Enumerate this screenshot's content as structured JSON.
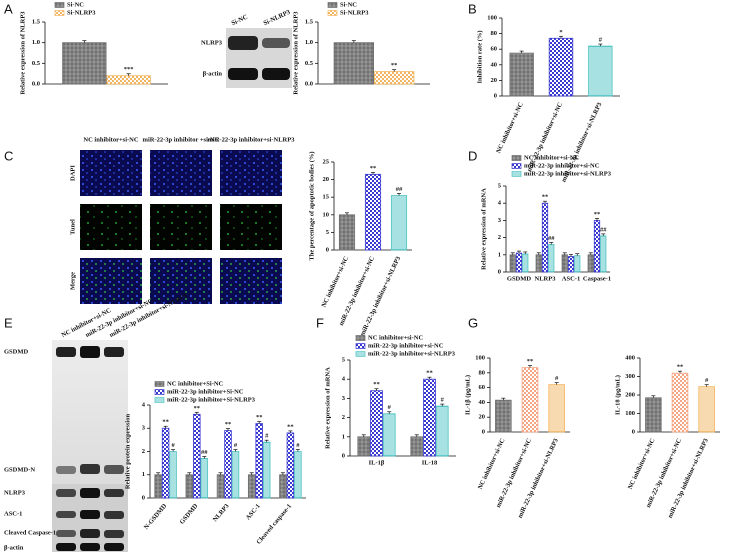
{
  "panel_labels": [
    "A",
    "B",
    "C",
    "D",
    "E",
    "F",
    "G"
  ],
  "blot_A": {
    "columns": [
      "Si-NC",
      "Si-NLRP3"
    ],
    "rows": [
      "NLRP3",
      "β-actin"
    ]
  },
  "images_C": {
    "columns": [
      "NC inhibitor+si-NC",
      "miR-22-3p inhibitor +si-NC",
      "miR-22-3p inhibitor+si-NLRP3"
    ],
    "rows": [
      "DAPI",
      "Tunel",
      "Merge"
    ]
  },
  "blot_E": {
    "columns": [
      "NC inhibitor+si-NC",
      "miR-22-3p inhibitor+si-NC",
      "miR-22-3p inhibitor+si-NLRP3"
    ],
    "rows": [
      "GSDMD",
      "GSDMD-N",
      "NLRP3",
      "ASC-1",
      "Cleaved Caspase-1",
      "β-actin"
    ]
  },
  "chart_data": [
    {
      "type": "bar",
      "ylabel": "Relative expression of NLRP3",
      "categories": [
        null
      ],
      "series": [
        {
          "name": "Si-NC",
          "color": "#707070",
          "values": [
            1.0
          ],
          "annotations": [
            null
          ]
        },
        {
          "name": "Si-NLRP3",
          "color": "#f2b560",
          "values": [
            0.2
          ],
          "annotations": [
            "***"
          ]
        }
      ],
      "ylim": [
        0,
        1.5
      ],
      "yticks": [
        {
          "value": 0,
          "label": "0.0"
        },
        {
          "value": 0.5,
          "label": "0.5"
        },
        {
          "value": 1,
          "label": "1.0"
        },
        {
          "value": 1.5,
          "label": "1.5"
        }
      ]
    },
    {
      "type": "bar",
      "ylabel": "Relative expression of NLRP3",
      "categories": [
        null
      ],
      "series": [
        {
          "name": "Si-NC",
          "color": "#707070",
          "values": [
            1.0
          ],
          "annotations": [
            null
          ]
        },
        {
          "name": "Si-NLRP3",
          "color": "#f2b560",
          "values": [
            0.3
          ],
          "annotations": [
            "**"
          ]
        }
      ],
      "ylim": [
        0,
        1.5
      ],
      "yticks": [
        {
          "value": 0,
          "label": "0.0"
        },
        {
          "value": 0.5,
          "label": "0.5"
        },
        {
          "value": 1,
          "label": "1.0"
        },
        {
          "value": 1.5,
          "label": "1.5"
        }
      ]
    },
    {
      "type": "bar",
      "ylabel": "Inhibition rate (%)",
      "categories": [
        "NC inhibitor+si-NC",
        "miR-22-3p inhibitor+si-NC",
        "miR-22-3p inhibitor+si-NLRP3"
      ],
      "values": [
        55,
        74,
        64
      ],
      "colors": [
        "#707070",
        "#3a3ad0",
        "#4fc3c3"
      ],
      "annotations": [
        null,
        "*",
        "#"
      ],
      "ylim": [
        0,
        100
      ],
      "yticks": [
        0,
        20,
        40,
        60,
        80,
        100
      ]
    },
    {
      "type": "bar",
      "ylabel": "The percentage of apoptotic bodies (%)",
      "categories": [
        "NC inhibitor+si-NC",
        "miR-22-3p inhibitor+si-NC",
        "miR-22-3p inhibitor+si-NLRP3"
      ],
      "values": [
        10,
        21.5,
        15.5
      ],
      "colors": [
        "#707070",
        "#3a3ad0",
        "#4fc3c3"
      ],
      "annotations": [
        null,
        "**",
        "##"
      ],
      "ylim": [
        0,
        25
      ],
      "yticks": [
        0,
        5,
        10,
        15,
        20,
        25
      ]
    },
    {
      "type": "bar",
      "ylabel": "Relative expression of mRNA",
      "categories": [
        "GSDMD",
        "NLRP3",
        "ASC-1",
        "Caspase-1"
      ],
      "series": [
        {
          "name": "NC inhibitor+si-NC",
          "color": "#707070",
          "values": [
            1,
            1,
            1,
            1
          ],
          "annotations": [
            null,
            null,
            null,
            null
          ]
        },
        {
          "name": "miR-22-3p inhibitor+si-NC",
          "color": "#3a3ad0",
          "values": [
            1.1,
            4.0,
            0.9,
            3.0
          ],
          "annotations": [
            null,
            "**",
            null,
            "**"
          ]
        },
        {
          "name": "miR-22-3p inhibitor+si-NLRP3",
          "color": "#4fc3c3",
          "values": [
            1.05,
            1.6,
            0.95,
            2.1
          ],
          "annotations": [
            null,
            "##",
            null,
            "##"
          ]
        }
      ],
      "ylim": [
        0,
        5
      ],
      "yticks": [
        0,
        1,
        2,
        3,
        4,
        5
      ]
    },
    {
      "type": "bar",
      "ylabel": "Relative protein expression",
      "categories": [
        "N-GSDMD",
        "GSDMD",
        "NLRP3",
        "ASC-1",
        "Cleaved caspase-1"
      ],
      "series": [
        {
          "name": "NC inhibitor+Si-NC",
          "color": "#707070",
          "values": [
            1,
            1,
            1,
            1,
            1
          ],
          "annotations": [
            null,
            null,
            null,
            null,
            null
          ]
        },
        {
          "name": "miR-22-3p inhibitor+Si-NC",
          "color": "#3a3ad0",
          "values": [
            3.0,
            3.6,
            2.9,
            3.2,
            2.8
          ],
          "annotations": [
            "**",
            "**",
            "**",
            "**",
            "**"
          ]
        },
        {
          "name": "miR-22-3p inhibitor+Si-NLRP3",
          "color": "#4fc3c3",
          "values": [
            2.0,
            1.7,
            2.0,
            2.4,
            2.0
          ],
          "annotations": [
            "#",
            "##",
            "#",
            "#",
            "#"
          ]
        }
      ],
      "ylim": [
        0,
        4
      ],
      "yticks": [
        0,
        1,
        2,
        3,
        4
      ]
    },
    {
      "type": "bar",
      "ylabel": "Relative expression of mRNA",
      "categories": [
        "IL-1β",
        "IL-18"
      ],
      "series": [
        {
          "name": "NC inhibitor+si-NC",
          "color": "#707070",
          "values": [
            1,
            1
          ],
          "annotations": [
            null,
            null
          ]
        },
        {
          "name": "miR-22-3p inhibitor+si-NC",
          "color": "#3a3ad0",
          "values": [
            3.4,
            4.0
          ],
          "annotations": [
            "**",
            "**"
          ]
        },
        {
          "name": "miR-22-3p inhibitor+si-NLRP3",
          "color": "#4fc3c3",
          "values": [
            2.2,
            2.6
          ],
          "annotations": [
            "#",
            "#"
          ]
        }
      ],
      "ylim": [
        0,
        5
      ],
      "yticks": [
        0,
        1,
        2,
        3,
        4,
        5
      ]
    },
    {
      "type": "bar",
      "ylabel": "IL-1β (pg/mL)",
      "categories": [
        "NC inhibitor+si-NC",
        "miR-22-3p inhibitor+si-NC",
        "miR-22-3p inhibitor+si-NLRP3"
      ],
      "values": [
        43,
        87,
        64
      ],
      "colors": [
        "#707070",
        "#f4a582",
        "#f2b560"
      ],
      "annotations": [
        null,
        "**",
        "#"
      ],
      "ylim": [
        0,
        100
      ],
      "yticks": [
        0,
        20,
        40,
        60,
        80,
        100
      ]
    },
    {
      "type": "bar",
      "ylabel": "IL-18 (pg/mL)",
      "categories": [
        "NC inhibitor+si-NC",
        "miR-22-3p inhibitor+si-NC",
        "miR-22-3p inhibitor+si-NLRP3"
      ],
      "values": [
        185,
        318,
        245
      ],
      "colors": [
        "#707070",
        "#f4a582",
        "#f2b560"
      ],
      "annotations": [
        null,
        "**",
        "#"
      ],
      "ylim": [
        0,
        400
      ],
      "yticks": [
        0,
        100,
        200,
        300,
        400
      ]
    }
  ]
}
